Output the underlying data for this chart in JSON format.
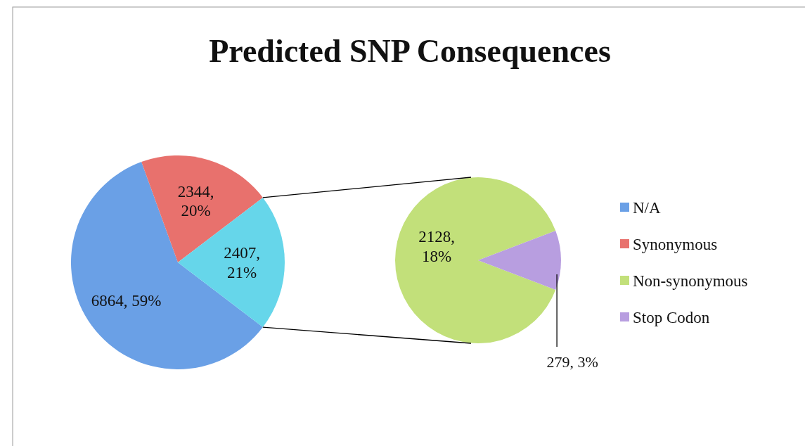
{
  "chart_data": [
    {
      "type": "pie",
      "title": "Predicted SNP Consequences",
      "categories": [
        "N/A",
        "Synonymous",
        null
      ],
      "values": [
        6864,
        2344,
        2407
      ],
      "colors": [
        "#6aa0e6",
        "#e8716d",
        "#66d6ea"
      ],
      "value_labels": [
        "6864, 59%",
        "2344, 20%",
        "2407, 21%"
      ],
      "legend": "right"
    },
    {
      "type": "pie",
      "categories": [
        "Non-synonymous",
        "Stop Codon"
      ],
      "values": [
        2128,
        279
      ],
      "colors": [
        "#c2e07a",
        "#b89ee0"
      ],
      "value_labels": [
        "2128, 18%",
        "279, 3%"
      ],
      "legend": "right"
    }
  ]
}
